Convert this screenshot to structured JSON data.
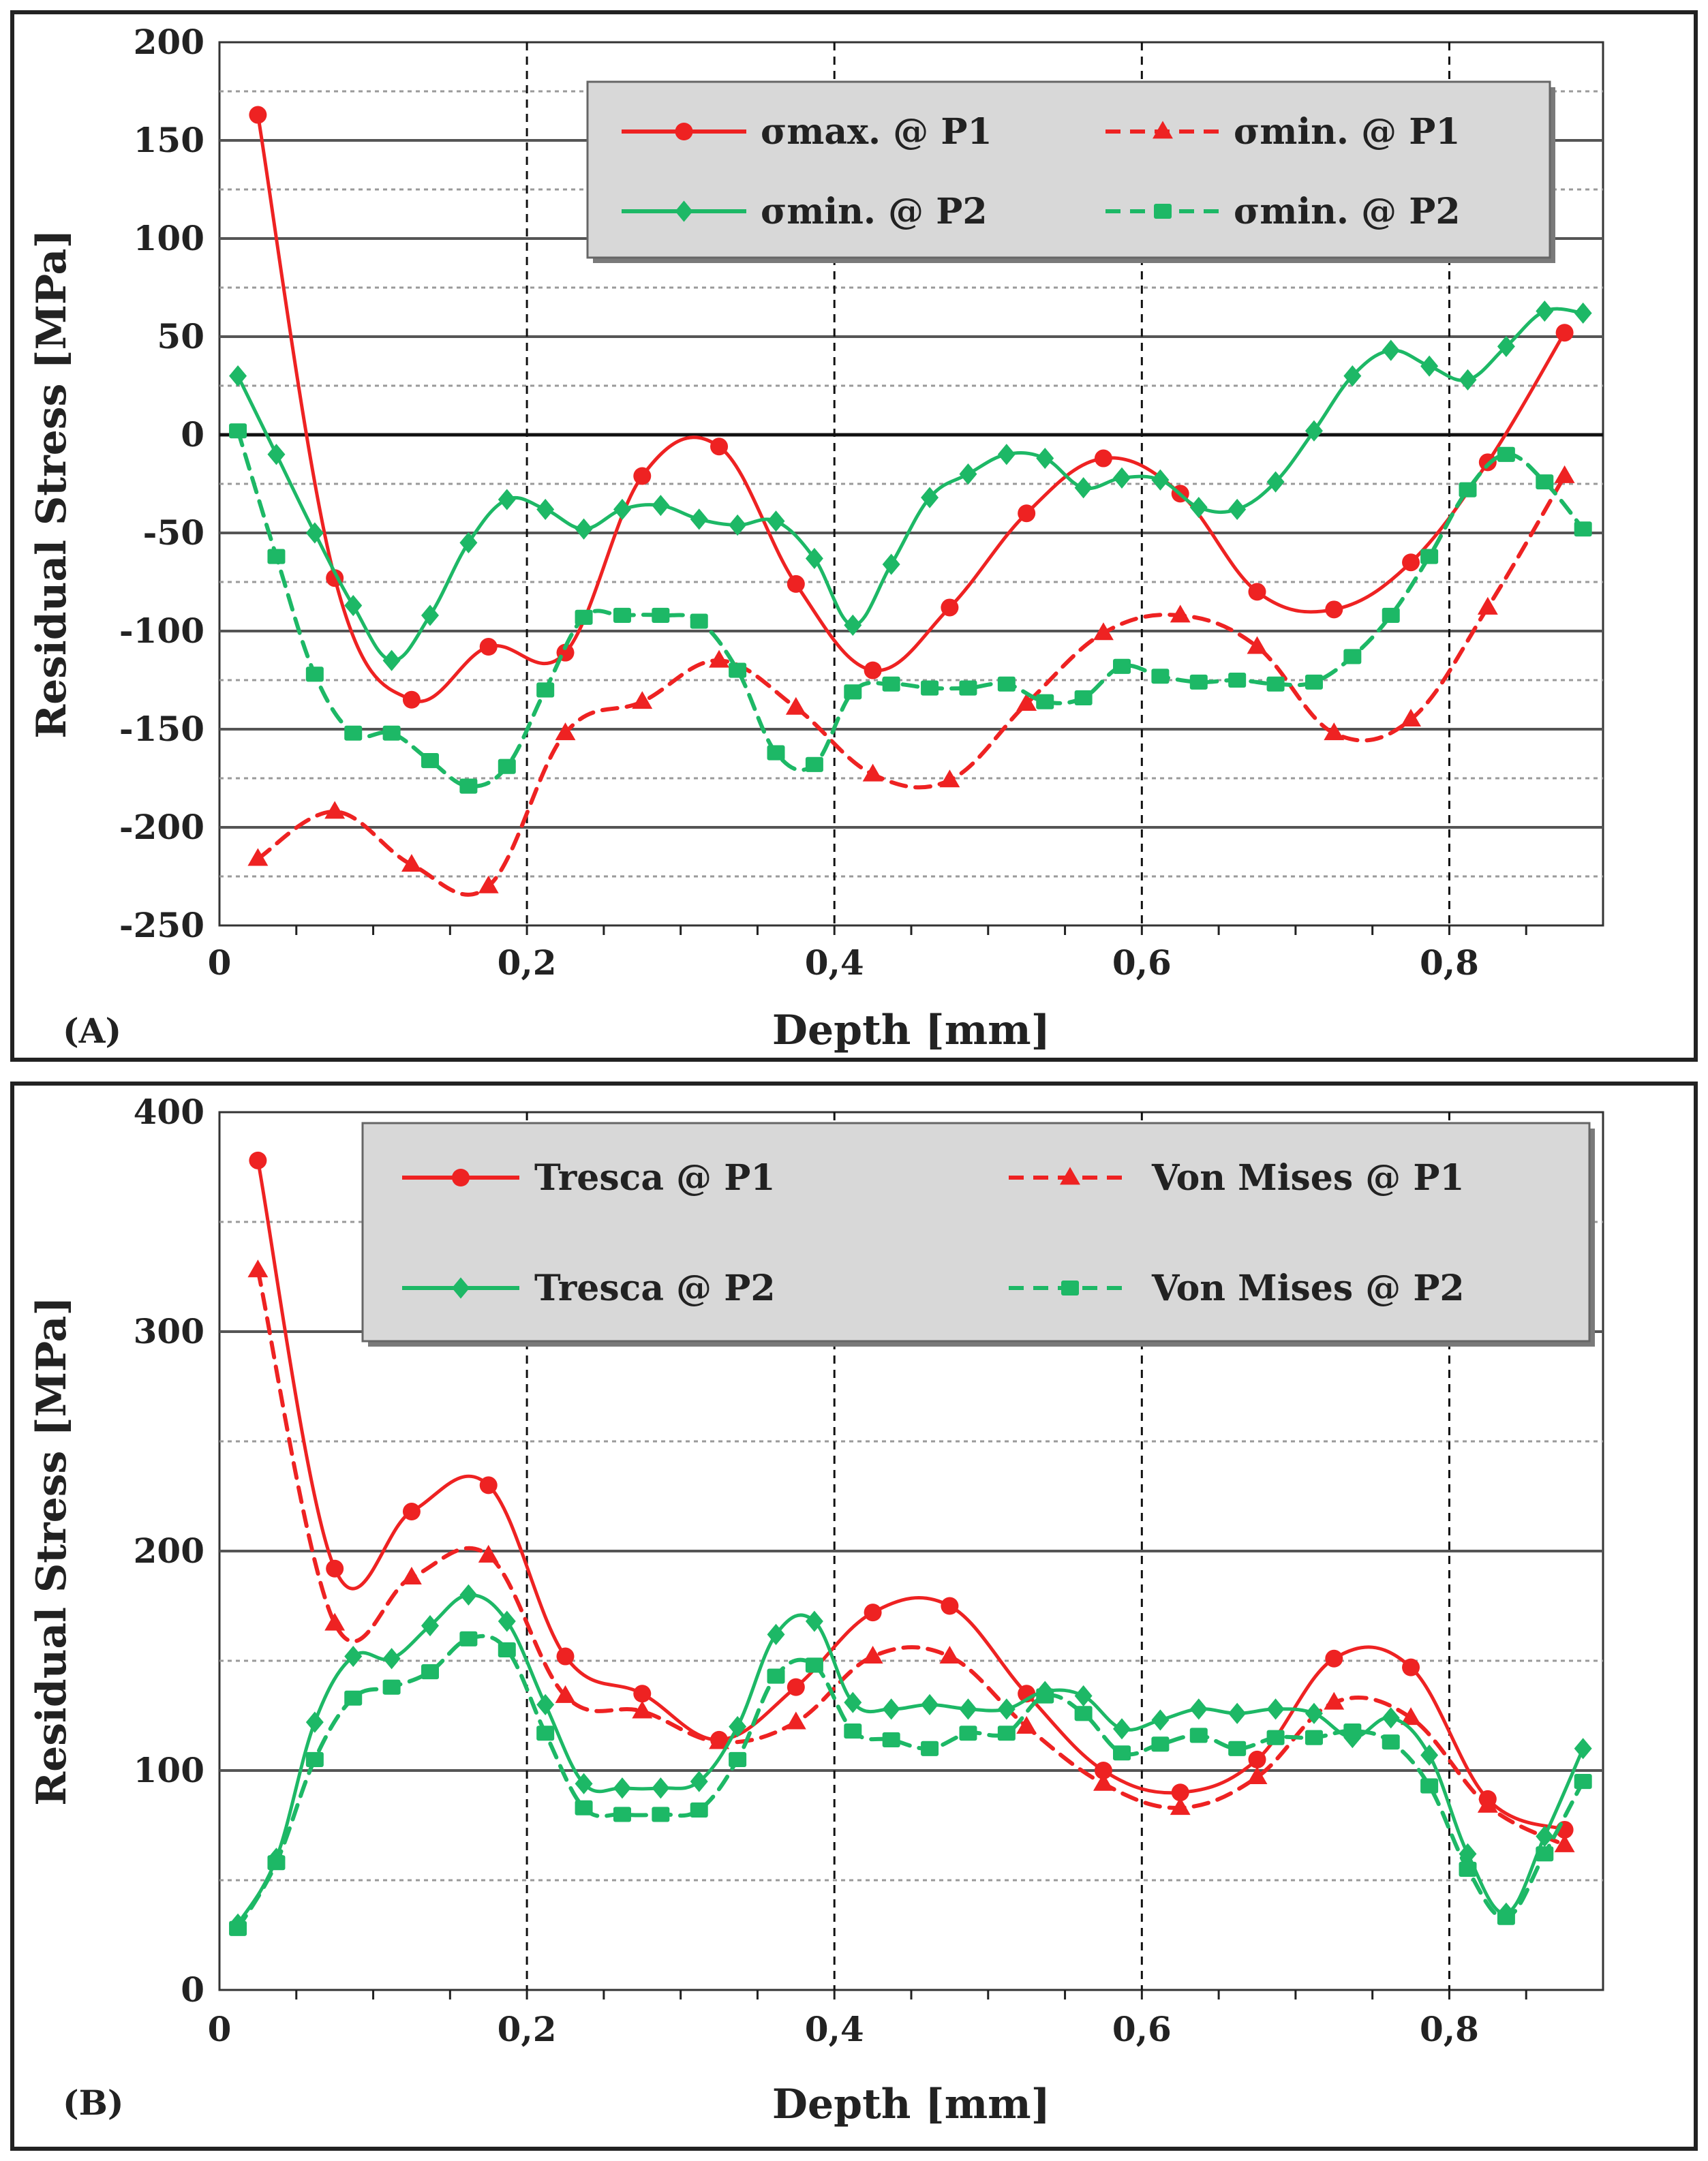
{
  "colors": {
    "p1": "#ee2222",
    "p2": "#1db866",
    "legend_bg": "#d8d8d8"
  },
  "chart_data": [
    {
      "type": "line",
      "panel_label": "(A)",
      "xlabel": "Depth [mm]",
      "ylabel": "Residual Stress [MPa]",
      "xlim": [
        0,
        0.9
      ],
      "ylim": [
        -250,
        200
      ],
      "yticks": [
        200,
        150,
        100,
        50,
        0,
        -50,
        -100,
        -150,
        -200,
        -250
      ],
      "ytick_labels": [
        "200",
        "150",
        "100",
        "50",
        "0",
        "-50",
        "-100",
        "-150",
        "-200",
        "-250"
      ],
      "xticks": [
        0,
        0.2,
        0.4,
        0.6,
        0.8
      ],
      "xtick_labels": [
        "0",
        "0,2",
        "0,4",
        "0,6",
        "0,8"
      ],
      "legend": "top-right",
      "series": [
        {
          "name": "σmax. @ P1",
          "color": "p1",
          "dash": false,
          "marker": "circle",
          "x": [
            0.025,
            0.075,
            0.125,
            0.175,
            0.225,
            0.275,
            0.325,
            0.375,
            0.425,
            0.475,
            0.525,
            0.575,
            0.625,
            0.675,
            0.725,
            0.775,
            0.825,
            0.875
          ],
          "y": [
            163,
            -73,
            -135,
            -108,
            -111,
            -21,
            -6,
            -76,
            -120,
            -88,
            -40,
            -12,
            -30,
            -80,
            -89,
            -65,
            -14,
            52
          ]
        },
        {
          "name": "σmin. @ P1",
          "color": "p1",
          "dash": true,
          "marker": "triangle",
          "x": [
            0.025,
            0.075,
            0.125,
            0.175,
            0.225,
            0.275,
            0.325,
            0.375,
            0.425,
            0.475,
            0.525,
            0.575,
            0.625,
            0.675,
            0.725,
            0.775,
            0.825,
            0.875
          ],
          "y": [
            -216,
            -192,
            -219,
            -230,
            -152,
            -136,
            -115,
            -139,
            -173,
            -176,
            -137,
            -101,
            -92,
            -108,
            -152,
            -145,
            -88,
            -21
          ]
        },
        {
          "name": "σmin. @ P2",
          "color": "p2",
          "dash": false,
          "marker": "diamond",
          "x": [
            0.012,
            0.037,
            0.062,
            0.087,
            0.112,
            0.137,
            0.162,
            0.187,
            0.212,
            0.237,
            0.262,
            0.287,
            0.312,
            0.337,
            0.362,
            0.387,
            0.412,
            0.437,
            0.462,
            0.487,
            0.512,
            0.537,
            0.562,
            0.587,
            0.612,
            0.637,
            0.662,
            0.687,
            0.712,
            0.737,
            0.762,
            0.787,
            0.812,
            0.837,
            0.862,
            0.887
          ],
          "y": [
            30,
            -10,
            -50,
            -87,
            -115,
            -92,
            -55,
            -33,
            -38,
            -48,
            -38,
            -36,
            -43,
            -46,
            -44,
            -63,
            -97,
            -66,
            -32,
            -20,
            -10,
            -12,
            -27,
            -22,
            -23,
            -37,
            -38,
            -24,
            2,
            30,
            43,
            35,
            28,
            45,
            63,
            62
          ]
        },
        {
          "name": "σmin. @ P2",
          "color": "p2",
          "dash": true,
          "marker": "square",
          "x": [
            0.012,
            0.037,
            0.062,
            0.087,
            0.112,
            0.137,
            0.162,
            0.187,
            0.212,
            0.237,
            0.262,
            0.287,
            0.312,
            0.337,
            0.362,
            0.387,
            0.412,
            0.437,
            0.462,
            0.487,
            0.512,
            0.537,
            0.562,
            0.587,
            0.612,
            0.637,
            0.662,
            0.687,
            0.712,
            0.737,
            0.762,
            0.787,
            0.812,
            0.837,
            0.862,
            0.887
          ],
          "y": [
            2,
            -62,
            -122,
            -152,
            -152,
            -166,
            -179,
            -169,
            -130,
            -93,
            -92,
            -92,
            -95,
            -120,
            -162,
            -168,
            -131,
            -127,
            -129,
            -129,
            -127,
            -136,
            -134,
            -118,
            -123,
            -126,
            -125,
            -127,
            -126,
            -113,
            -92,
            -62,
            -28,
            -10,
            -24,
            -48
          ]
        }
      ]
    },
    {
      "type": "line",
      "panel_label": "(B)",
      "xlabel": "Depth [mm]",
      "ylabel": "Residual Stress [MPa]",
      "xlim": [
        0,
        0.9
      ],
      "ylim": [
        0,
        400
      ],
      "yticks": [
        400,
        300,
        200,
        100,
        0
      ],
      "ytick_labels": [
        "400",
        "300",
        "200",
        "100",
        "0"
      ],
      "xticks": [
        0,
        0.2,
        0.4,
        0.6,
        0.8
      ],
      "xtick_labels": [
        "0",
        "0,2",
        "0,4",
        "0,6",
        "0,8"
      ],
      "legend": "top-right",
      "series": [
        {
          "name": "Tresca @ P1",
          "color": "p1",
          "dash": false,
          "marker": "circle",
          "x": [
            0.025,
            0.075,
            0.125,
            0.175,
            0.225,
            0.275,
            0.325,
            0.375,
            0.425,
            0.475,
            0.525,
            0.575,
            0.625,
            0.675,
            0.725,
            0.775,
            0.825,
            0.875
          ],
          "y": [
            378,
            192,
            218,
            230,
            152,
            135,
            114,
            138,
            172,
            175,
            135,
            100,
            90,
            105,
            151,
            147,
            87,
            73
          ]
        },
        {
          "name": "Von Mises @ P1",
          "color": "p1",
          "dash": true,
          "marker": "triangle",
          "x": [
            0.025,
            0.075,
            0.125,
            0.175,
            0.225,
            0.275,
            0.325,
            0.375,
            0.425,
            0.475,
            0.525,
            0.575,
            0.625,
            0.675,
            0.725,
            0.775,
            0.825,
            0.875
          ],
          "y": [
            328,
            167,
            188,
            198,
            134,
            127,
            113,
            122,
            152,
            152,
            120,
            94,
            83,
            97,
            131,
            124,
            84,
            66
          ]
        },
        {
          "name": "Tresca @ P2",
          "color": "p2",
          "dash": false,
          "marker": "diamond",
          "x": [
            0.012,
            0.037,
            0.062,
            0.087,
            0.112,
            0.137,
            0.162,
            0.187,
            0.212,
            0.237,
            0.262,
            0.287,
            0.312,
            0.337,
            0.362,
            0.387,
            0.412,
            0.437,
            0.462,
            0.487,
            0.512,
            0.537,
            0.562,
            0.587,
            0.612,
            0.637,
            0.662,
            0.687,
            0.712,
            0.737,
            0.762,
            0.787,
            0.812,
            0.837,
            0.862,
            0.887
          ],
          "y": [
            30,
            60,
            122,
            152,
            151,
            166,
            180,
            168,
            130,
            94,
            92,
            92,
            95,
            120,
            162,
            168,
            131,
            128,
            130,
            128,
            128,
            136,
            134,
            119,
            123,
            128,
            126,
            128,
            126,
            115,
            124,
            107,
            62,
            35,
            70,
            110
          ]
        },
        {
          "name": "Von Mises @ P2",
          "color": "p2",
          "dash": true,
          "marker": "square",
          "x": [
            0.012,
            0.037,
            0.062,
            0.087,
            0.112,
            0.137,
            0.162,
            0.187,
            0.212,
            0.237,
            0.262,
            0.287,
            0.312,
            0.337,
            0.362,
            0.387,
            0.412,
            0.437,
            0.462,
            0.487,
            0.512,
            0.537,
            0.562,
            0.587,
            0.612,
            0.637,
            0.662,
            0.687,
            0.712,
            0.737,
            0.762,
            0.787,
            0.812,
            0.837,
            0.862,
            0.887
          ],
          "y": [
            28,
            58,
            105,
            133,
            138,
            145,
            160,
            155,
            117,
            83,
            80,
            80,
            82,
            105,
            143,
            148,
            118,
            114,
            110,
            117,
            117,
            134,
            126,
            108,
            112,
            116,
            110,
            115,
            115,
            118,
            113,
            93,
            55,
            33,
            62,
            95
          ]
        }
      ]
    }
  ]
}
